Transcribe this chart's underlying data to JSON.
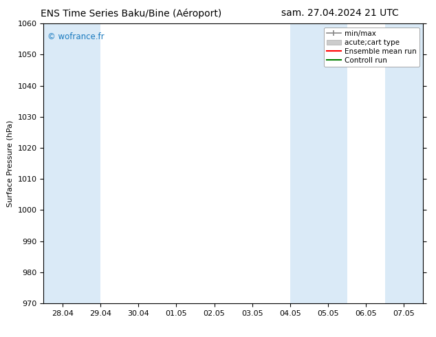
{
  "title_left": "ENS Time Series Baku/Bine (Aéroport)",
  "title_right": "sam. 27.04.2024 21 UTC",
  "ylabel": "Surface Pressure (hPa)",
  "ylim": [
    970,
    1060
  ],
  "yticks": [
    970,
    980,
    990,
    1000,
    1010,
    1020,
    1030,
    1040,
    1050,
    1060
  ],
  "xtick_labels": [
    "28.04",
    "29.04",
    "30.04",
    "01.05",
    "02.05",
    "03.05",
    "04.05",
    "05.05",
    "06.05",
    "07.05"
  ],
  "xtick_positions": [
    0,
    1,
    2,
    3,
    4,
    5,
    6,
    7,
    8,
    9
  ],
  "xlim": [
    -0.5,
    9.5
  ],
  "shaded_bands": [
    {
      "x_start": -0.5,
      "x_end": 1.0,
      "color": "#daeaf7"
    },
    {
      "x_start": 6.0,
      "x_end": 7.5,
      "color": "#daeaf7"
    },
    {
      "x_start": 8.5,
      "x_end": 9.5,
      "color": "#daeaf7"
    }
  ],
  "watermark": "© wofrance.fr",
  "watermark_color": "#1a7abf",
  "legend_items": [
    {
      "label": "min/max",
      "color": "#aaaaaa",
      "style": "errorbar"
    },
    {
      "label": "acute;cart type",
      "color": "#cccccc",
      "style": "fill"
    },
    {
      "label": "Ensemble mean run",
      "color": "red",
      "style": "line"
    },
    {
      "label": "Controll run",
      "color": "green",
      "style": "line"
    }
  ],
  "bg_color": "#ffffff",
  "plot_bg_color": "#ffffff",
  "spine_color": "#000000",
  "tick_color": "#000000",
  "title_fontsize": 10,
  "tick_fontsize": 8,
  "ylabel_fontsize": 8,
  "legend_fontsize": 7.5
}
